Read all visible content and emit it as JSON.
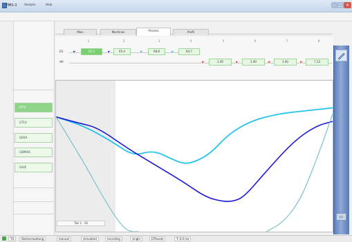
{
  "window": {
    "title": "MS-3"
  },
  "menu": [
    "File",
    "Analysis",
    "Help"
  ],
  "tabs": [
    {
      "label": "Main",
      "active": false
    },
    {
      "label": "Machines",
      "active": false
    },
    {
      "label": "Process",
      "active": true
    },
    {
      "label": "Profil",
      "active": false
    }
  ],
  "sequence": {
    "columns": [
      "1",
      "2",
      "3",
      "4",
      "5",
      "6",
      "7",
      "8"
    ],
    "rows": [
      {
        "label": "D1",
        "cells": [
          {
            "text": "65.5",
            "highlight": true
          },
          {
            "text": "65.4",
            "highlight": false
          },
          {
            "text": "68.8",
            "highlight": false
          },
          {
            "text": "64.7",
            "highlight": false
          }
        ]
      },
      {
        "label": "dH",
        "cells": [
          {
            "text": "1.00",
            "highlight": false
          },
          {
            "text": "1.00",
            "highlight": false
          },
          {
            "text": "1.00",
            "highlight": false
          },
          {
            "text": "7.13",
            "highlight": false
          }
        ]
      }
    ]
  },
  "left_panel": {
    "buttons": [
      {
        "label": "LTP3",
        "active": true
      },
      {
        "label": "GT1A",
        "active": false
      },
      {
        "label": "GD4A",
        "active": false
      },
      {
        "label": "GWM4A",
        "active": false
      },
      {
        "label": "GA/X",
        "active": false
      }
    ]
  },
  "chart_data": {
    "type": "line",
    "title": "",
    "xlabel": "",
    "ylabel": "",
    "xlim": [
      0,
      100
    ],
    "ylim": [
      0,
      100
    ],
    "grid": false,
    "series": [
      {
        "color": "#22c4ec",
        "width": 1.8,
        "x": [
          0,
          10,
          20,
          28,
          35,
          42,
          46,
          50,
          56,
          62,
          70,
          80,
          90,
          100
        ],
        "y": [
          24,
          30,
          40,
          50,
          46,
          52,
          55,
          54,
          48,
          36,
          27,
          22,
          20,
          18
        ]
      },
      {
        "color": "#1a16d6",
        "width": 1.6,
        "x": [
          0,
          8,
          15,
          26,
          36,
          46,
          54,
          60,
          64,
          68,
          76,
          86,
          94,
          100
        ],
        "y": [
          24,
          28,
          31,
          45,
          56,
          67,
          77,
          80,
          80,
          77,
          60,
          40,
          30,
          27
        ]
      },
      {
        "color": "#6fbfc6",
        "width": 1.1,
        "x": [
          0,
          4,
          10,
          16,
          22,
          26,
          30
        ],
        "y": [
          24,
          36,
          54,
          74,
          92,
          100,
          100
        ]
      },
      {
        "color": "#6fbfc6",
        "width": 1.1,
        "x": [
          76,
          82,
          88,
          93,
          97,
          100
        ],
        "y": [
          100,
          94,
          80,
          58,
          38,
          22
        ]
      }
    ],
    "shade_until_fraction": 0.21
  },
  "chart_label": "Tab 1 - 18",
  "statusbar": [
    "TS",
    "Startverwaltung",
    "manual",
    "simulated",
    "recording",
    "single",
    "LTPovolo",
    "T: 0.0 ms"
  ],
  "colors": {
    "accent": "#78d072",
    "sidebar": "#6f8fc6",
    "arrow_blue": "#2a3fd0",
    "arrow_red": "#e04a2a",
    "arrow_cyan": "#2fb9dc"
  }
}
